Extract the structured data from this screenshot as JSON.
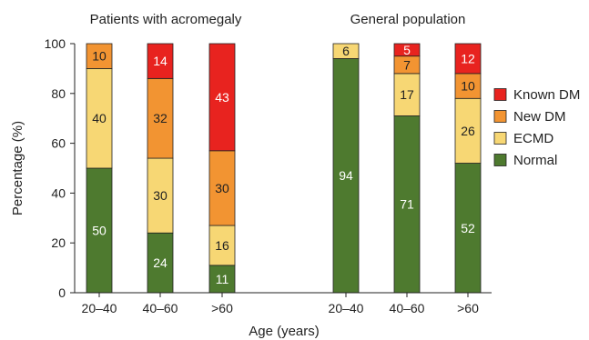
{
  "chart_data": {
    "type": "bar",
    "stacked": true,
    "ylabel": "Percentage (%)",
    "xlabel": "Age (years)",
    "ylim": [
      0,
      100
    ],
    "yticks": [
      0,
      20,
      40,
      60,
      80,
      100
    ],
    "legend_position": "right",
    "groups": [
      {
        "title": "Patients with acromegaly",
        "categories": [
          "20–40",
          "40–60",
          ">60"
        ],
        "series": [
          {
            "name": "Normal",
            "values": [
              50,
              24,
              11
            ]
          },
          {
            "name": "ECMD",
            "values": [
              40,
              30,
              16
            ]
          },
          {
            "name": "New DM",
            "values": [
              10,
              32,
              30
            ]
          },
          {
            "name": "Known DM",
            "values": [
              0,
              14,
              43
            ]
          }
        ]
      },
      {
        "title": "General population",
        "categories": [
          "20–40",
          "40–60",
          ">60"
        ],
        "series": [
          {
            "name": "Normal",
            "values": [
              94,
              71,
              52
            ]
          },
          {
            "name": "ECMD",
            "values": [
              6,
              17,
              26
            ]
          },
          {
            "name": "New DM",
            "values": [
              0,
              7,
              10
            ]
          },
          {
            "name": "Known DM",
            "values": [
              0,
              5,
              12
            ]
          }
        ]
      }
    ],
    "legend": [
      "Known DM",
      "New DM",
      "ECMD",
      "Normal"
    ],
    "colors": {
      "Normal": "#4e7a2f",
      "ECMD": "#f7d774",
      "New DM": "#f29432",
      "Known DM": "#e8231f"
    },
    "label_colors": {
      "Normal": "#ffffff",
      "ECMD": "#222222",
      "New DM": "#222222",
      "Known DM": "#ffffff"
    }
  }
}
